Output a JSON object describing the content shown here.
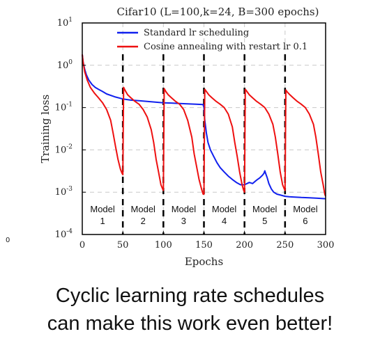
{
  "left_stub_text": "0",
  "caption": {
    "line1": "Cyclic learning rate schedules",
    "line2": "can make this work even better!"
  },
  "colors": {
    "standard": "#1020ee",
    "cosine": "#ee1010",
    "restart_lines": "#000000",
    "grid": "#c8c8c8"
  },
  "chart_data": {
    "type": "line",
    "title": "Cifar10 (L=100,k=24, B=300 epochs)",
    "xlabel": "Epochs",
    "ylabel": "Training loss",
    "xlim": [
      0,
      300
    ],
    "ylim": [
      0.0001,
      10
    ],
    "yscale": "log",
    "grid": true,
    "legend_position": "top",
    "xticks": [
      0,
      50,
      100,
      150,
      200,
      250,
      300
    ],
    "yticks": [
      {
        "value": 10,
        "base": "10",
        "exp": "1"
      },
      {
        "value": 1,
        "base": "10",
        "exp": "0"
      },
      {
        "value": 0.1,
        "base": "10",
        "exp": "-1"
      },
      {
        "value": 0.01,
        "base": "10",
        "exp": "-2"
      },
      {
        "value": 0.001,
        "base": "10",
        "exp": "-3"
      },
      {
        "value": 0.0001,
        "base": "10",
        "exp": "-4"
      }
    ],
    "restart_epochs": [
      50,
      100,
      150,
      200,
      250
    ],
    "models": [
      {
        "label": "Model",
        "num": "1",
        "x": 25
      },
      {
        "label": "Model",
        "num": "2",
        "x": 75
      },
      {
        "label": "Model",
        "num": "3",
        "x": 125
      },
      {
        "label": "Model",
        "num": "4",
        "x": 175
      },
      {
        "label": "Model",
        "num": "5",
        "x": 225
      },
      {
        "label": "Model",
        "num": "6",
        "x": 275
      }
    ],
    "series": [
      {
        "name": "Standard lr scheduling",
        "color": "#1020ee",
        "x": [
          0,
          1,
          3,
          5,
          8,
          12,
          16,
          20,
          25,
          30,
          40,
          50,
          60,
          70,
          80,
          90,
          100,
          110,
          120,
          130,
          140,
          149,
          150,
          151,
          153,
          155,
          158,
          162,
          166,
          170,
          175,
          180,
          185,
          190,
          195,
          200,
          203,
          206,
          210,
          213,
          216,
          219,
          222,
          224,
          225,
          226,
          228,
          230,
          233,
          236,
          240,
          245,
          250,
          255,
          260,
          270,
          280,
          290,
          300
        ],
        "y": [
          1.8,
          1.2,
          0.8,
          0.6,
          0.45,
          0.35,
          0.3,
          0.27,
          0.24,
          0.21,
          0.18,
          0.16,
          0.15,
          0.145,
          0.14,
          0.135,
          0.13,
          0.128,
          0.125,
          0.122,
          0.12,
          0.118,
          0.1,
          0.05,
          0.025,
          0.015,
          0.01,
          0.007,
          0.005,
          0.0038,
          0.003,
          0.0024,
          0.002,
          0.0017,
          0.0015,
          0.0015,
          0.0016,
          0.0017,
          0.0016,
          0.0018,
          0.002,
          0.0022,
          0.0025,
          0.0028,
          0.0032,
          0.0028,
          0.0022,
          0.0016,
          0.0012,
          0.001,
          0.0009,
          0.00085,
          0.0008,
          0.00078,
          0.00077,
          0.00075,
          0.00074,
          0.00072,
          0.0007
        ]
      },
      {
        "name": "Cosine annealing with restart lr 0.1",
        "color": "#ee1010",
        "x": [
          0,
          1,
          3,
          6,
          10,
          15,
          20,
          25,
          30,
          35,
          38,
          41,
          44,
          47,
          49,
          50,
          51,
          53,
          56,
          60,
          65,
          70,
          75,
          80,
          85,
          88,
          91,
          94,
          97,
          99,
          100,
          101,
          103,
          106,
          110,
          115,
          120,
          125,
          130,
          135,
          138,
          141,
          144,
          147,
          149,
          150,
          151,
          153,
          156,
          160,
          165,
          170,
          175,
          180,
          185,
          188,
          191,
          194,
          197,
          199,
          200,
          201,
          203,
          206,
          210,
          215,
          220,
          225,
          230,
          235,
          238,
          241,
          244,
          247,
          249,
          250,
          251,
          253,
          256,
          260,
          265,
          270,
          275,
          280,
          285,
          288,
          291,
          294,
          297,
          299,
          300
        ],
        "y": [
          1.8,
          1.2,
          0.7,
          0.45,
          0.3,
          0.22,
          0.17,
          0.13,
          0.09,
          0.05,
          0.025,
          0.012,
          0.006,
          0.0035,
          0.0028,
          0.0026,
          0.3,
          0.25,
          0.2,
          0.17,
          0.14,
          0.12,
          0.09,
          0.06,
          0.03,
          0.015,
          0.006,
          0.003,
          0.0015,
          0.0012,
          0.0011,
          0.28,
          0.24,
          0.2,
          0.17,
          0.14,
          0.12,
          0.09,
          0.05,
          0.02,
          0.008,
          0.004,
          0.002,
          0.0012,
          0.0009,
          0.0009,
          0.27,
          0.24,
          0.2,
          0.17,
          0.14,
          0.12,
          0.1,
          0.07,
          0.035,
          0.015,
          0.007,
          0.003,
          0.0015,
          0.0011,
          0.001,
          0.27,
          0.24,
          0.2,
          0.17,
          0.14,
          0.12,
          0.1,
          0.07,
          0.04,
          0.02,
          0.008,
          0.003,
          0.0015,
          0.0012,
          0.0011,
          0.26,
          0.23,
          0.2,
          0.17,
          0.14,
          0.12,
          0.1,
          0.07,
          0.04,
          0.02,
          0.008,
          0.003,
          0.0015,
          0.0009,
          0.0008
        ]
      }
    ]
  }
}
